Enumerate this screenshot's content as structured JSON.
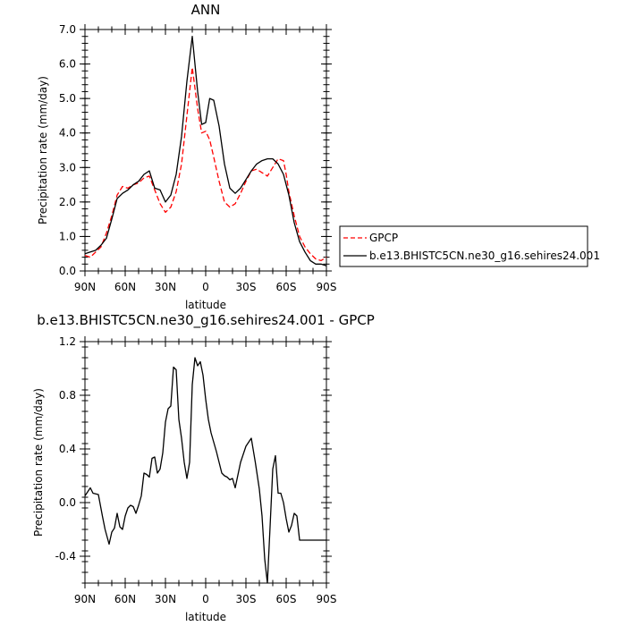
{
  "chart_data": [
    {
      "type": "line",
      "title": "ANN",
      "xlabel": "latitude",
      "ylabel": "Precipitation rate (mm/day)",
      "xlim": [
        -90,
        90
      ],
      "ylim": [
        0,
        7
      ],
      "xticks": [
        -90,
        -60,
        -30,
        0,
        30,
        60,
        90
      ],
      "xtick_labels": [
        "90N",
        "60N",
        "30N",
        "0",
        "30S",
        "60S",
        "90S"
      ],
      "yticks": [
        0,
        1,
        2,
        3,
        4,
        5,
        6,
        7
      ],
      "ytick_labels": [
        "0.0",
        "1.0",
        "2.0",
        "3.0",
        "4.0",
        "5.0",
        "6.0",
        "7.0"
      ],
      "grid": false,
      "legend_position": "outside-right",
      "series": [
        {
          "name": "GPCP",
          "color": "#ff0000",
          "style": "dashed",
          "x": [
            -90,
            -86,
            -82,
            -78,
            -74,
            -70,
            -66,
            -62,
            -58,
            -54,
            -50,
            -46,
            -42,
            -38,
            -34,
            -30,
            -26,
            -22,
            -18,
            -14,
            -10,
            -6,
            -3,
            0,
            3,
            6,
            10,
            14,
            18,
            22,
            26,
            30,
            34,
            38,
            42,
            46,
            50,
            54,
            58,
            60,
            62,
            66,
            70,
            74,
            78,
            82,
            86,
            90
          ],
          "values": [
            0.45,
            0.4,
            0.55,
            0.7,
            1.1,
            1.6,
            2.2,
            2.45,
            2.4,
            2.5,
            2.55,
            2.7,
            2.75,
            2.35,
            1.95,
            1.7,
            1.85,
            2.3,
            3.1,
            4.5,
            5.9,
            4.7,
            4.0,
            4.05,
            3.8,
            3.3,
            2.6,
            2.0,
            1.85,
            1.95,
            2.25,
            2.6,
            2.9,
            2.95,
            2.85,
            2.75,
            3.0,
            3.25,
            3.2,
            2.8,
            2.3,
            1.6,
            1.0,
            0.7,
            0.5,
            0.35,
            0.3,
            0.4
          ]
        },
        {
          "name": "b.e13.BHISTC5CN.ne30_g16.sehires24.001",
          "color": "#000000",
          "style": "solid",
          "x": [
            -90,
            -86,
            -82,
            -78,
            -74,
            -70,
            -66,
            -62,
            -58,
            -54,
            -50,
            -46,
            -42,
            -38,
            -34,
            -30,
            -26,
            -22,
            -18,
            -14,
            -10,
            -6,
            -3,
            0,
            3,
            6,
            10,
            14,
            18,
            22,
            26,
            30,
            34,
            38,
            42,
            46,
            50,
            54,
            58,
            60,
            62,
            66,
            70,
            74,
            78,
            82,
            86,
            90
          ],
          "values": [
            0.5,
            0.55,
            0.6,
            0.75,
            0.95,
            1.5,
            2.1,
            2.25,
            2.35,
            2.5,
            2.6,
            2.8,
            2.9,
            2.4,
            2.35,
            2.0,
            2.2,
            2.8,
            3.9,
            5.5,
            6.8,
            5.2,
            4.25,
            4.3,
            5.0,
            4.95,
            4.2,
            3.1,
            2.4,
            2.25,
            2.4,
            2.65,
            2.9,
            3.1,
            3.2,
            3.25,
            3.25,
            3.1,
            2.8,
            2.5,
            2.2,
            1.4,
            0.85,
            0.55,
            0.3,
            0.2,
            0.2,
            0.15
          ]
        }
      ]
    },
    {
      "type": "line",
      "title": "b.e13.BHISTC5CN.ne30_g16.sehires24.001 - GPCP",
      "xlabel": "latitude",
      "ylabel": "Precipitation rate (mm/day)",
      "xlim": [
        -90,
        90
      ],
      "ylim": [
        -0.6,
        1.2
      ],
      "xticks": [
        -90,
        -60,
        -30,
        0,
        30,
        60,
        90
      ],
      "xtick_labels": [
        "90N",
        "60N",
        "30N",
        "0",
        "30S",
        "60S",
        "90S"
      ],
      "yticks": [
        -0.4,
        0.0,
        0.4,
        0.8,
        1.2
      ],
      "ytick_labels": [
        "-0.4",
        "0.0",
        "0.4",
        "0.8",
        "1.2"
      ],
      "grid": false,
      "series": [
        {
          "name": "",
          "color": "#000000",
          "style": "solid",
          "x": [
            -90,
            -86,
            -84,
            -80,
            -77,
            -75,
            -72,
            -70,
            -68,
            -66,
            -64,
            -62,
            -60,
            -58,
            -56,
            -54,
            -52,
            -50,
            -48,
            -46,
            -44,
            -42,
            -40,
            -38,
            -36,
            -34,
            -32,
            -30,
            -28,
            -26,
            -24,
            -22,
            -20,
            -18,
            -16,
            -14,
            -12,
            -10,
            -8,
            -6,
            -4,
            -2,
            0,
            2,
            4,
            6,
            8,
            10,
            12,
            14,
            16,
            18,
            20,
            22,
            26,
            30,
            34,
            37,
            40,
            42,
            44,
            46,
            48,
            50,
            52,
            54,
            56,
            58,
            60,
            62,
            64,
            66,
            68,
            70,
            72,
            76,
            80,
            84,
            86,
            88,
            90
          ],
          "values": [
            0.05,
            0.11,
            0.07,
            0.06,
            -0.1,
            -0.2,
            -0.31,
            -0.22,
            -0.19,
            -0.08,
            -0.18,
            -0.2,
            -0.1,
            -0.04,
            -0.02,
            -0.03,
            -0.08,
            -0.02,
            0.05,
            0.22,
            0.21,
            0.19,
            0.33,
            0.34,
            0.22,
            0.25,
            0.37,
            0.6,
            0.7,
            0.72,
            1.01,
            0.99,
            0.62,
            0.48,
            0.3,
            0.18,
            0.3,
            0.88,
            1.08,
            1.02,
            1.05,
            0.95,
            0.77,
            0.62,
            0.52,
            0.45,
            0.38,
            0.3,
            0.22,
            0.2,
            0.19,
            0.17,
            0.18,
            0.11,
            0.3,
            0.42,
            0.48,
            0.3,
            0.1,
            -0.1,
            -0.42,
            -0.6,
            -0.18,
            0.25,
            0.35,
            0.07,
            0.07,
            0.0,
            -0.12,
            -0.22,
            -0.17,
            -0.08,
            -0.1,
            -0.28,
            -0.28,
            -0.28,
            -0.28,
            -0.28,
            -0.28,
            -0.28,
            -0.28
          ]
        }
      ]
    }
  ]
}
